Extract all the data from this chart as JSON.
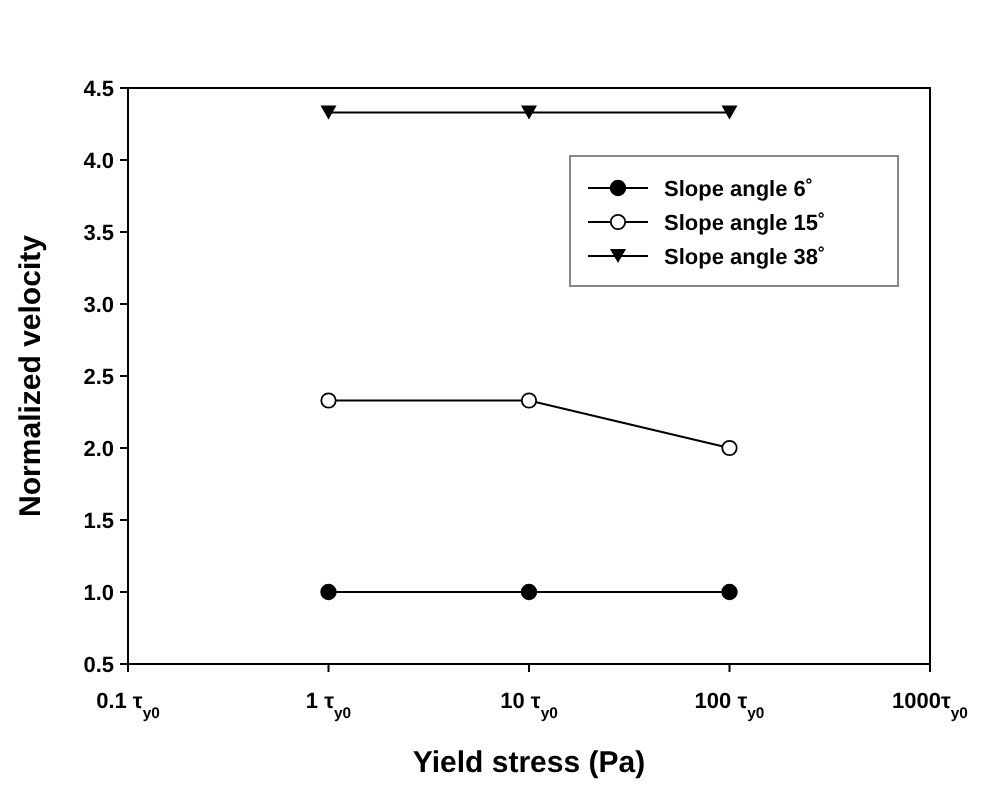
{
  "chart_data": {
    "type": "line",
    "xlabel": "Yield stress (Pa)",
    "ylabel": "Normalized velocity",
    "categories": [
      "0.1 τ$_{y0}$",
      "1 τ$_{y0}$",
      "10 τ$_{y0}$",
      "100 τ$_{y0}$",
      "1000τ$_{y0}$"
    ],
    "ylim": [
      0.5,
      4.5
    ],
    "yticks": [
      0.5,
      {
        "value": 1,
        "label": "1.0"
      },
      1.5,
      {
        "value": 2,
        "label": "2.0"
      },
      2.5,
      {
        "value": 3,
        "label": "3.0"
      },
      3.5,
      {
        "value": 4,
        "label": "4.0"
      },
      4.5
    ],
    "series": [
      {
        "name": "Slope angle 6˚",
        "color": "#000000",
        "marker": "circle",
        "values": [
          null,
          1,
          1,
          1,
          null
        ]
      },
      {
        "name": "Slope angle 15˚",
        "color": "#000000",
        "marker": "circle-open",
        "values": [
          null,
          2.33,
          2.33,
          2.0,
          null
        ]
      },
      {
        "name": "Slope angle 38˚",
        "color": "#000000",
        "marker": "triangle-down",
        "values": [
          null,
          4.33,
          4.33,
          4.33,
          null
        ]
      }
    ],
    "legend": "top right",
    "line_style": "solid"
  }
}
